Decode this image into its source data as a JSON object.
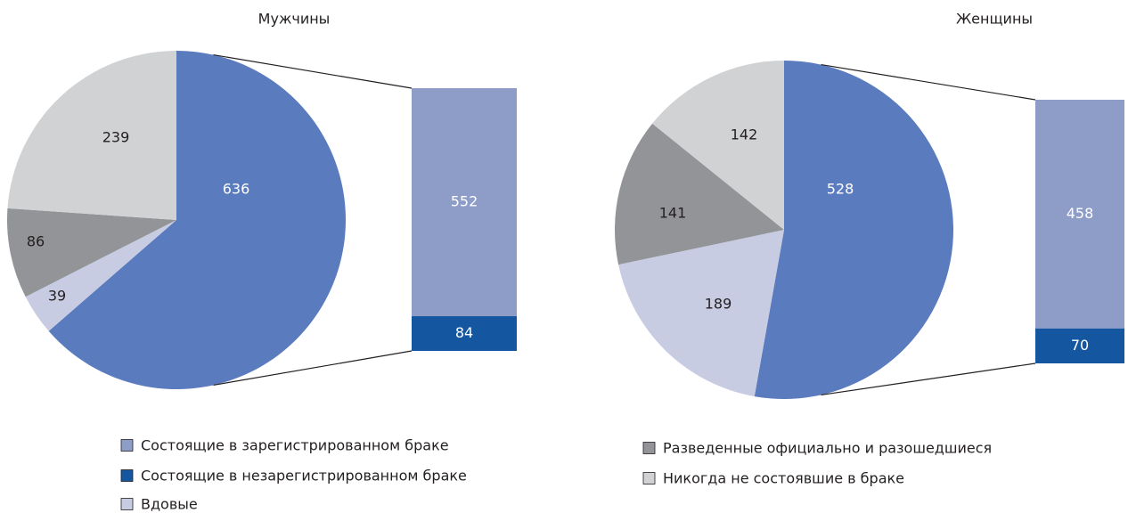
{
  "chart_data": [
    {
      "type": "pie",
      "title": "Мужчины",
      "values": [
        636,
        39,
        86,
        239
      ],
      "colors": [
        "#5b7bbf",
        "#c8cce3",
        "#929497",
        "#d1d2d4"
      ],
      "bar_values": [
        552,
        84
      ],
      "bar_colors": [
        "#8e9cc8",
        "#1456a0"
      ]
    },
    {
      "type": "pie",
      "title": "Женщины",
      "values": [
        528,
        189,
        141,
        142
      ],
      "colors": [
        "#5b7bbf",
        "#c8cce3",
        "#929497",
        "#d1d2d4"
      ],
      "bar_values": [
        458,
        70
      ],
      "bar_colors": [
        "#8e9cc8",
        "#1456a0"
      ]
    }
  ],
  "legend": [
    {
      "name": "Состоящие в зарегистрированном браке",
      "color": "#8e9cc8"
    },
    {
      "name": "Состоящие в незарегистрированном браке",
      "color": "#1456a0"
    },
    {
      "name": "Вдовые",
      "color": "#c8cce3"
    },
    {
      "name": "Разведенные официально и разошедшиеся",
      "color": "#929497"
    },
    {
      "name": "Никогда не состоявшие в браке",
      "color": "#d1d2d4"
    }
  ]
}
